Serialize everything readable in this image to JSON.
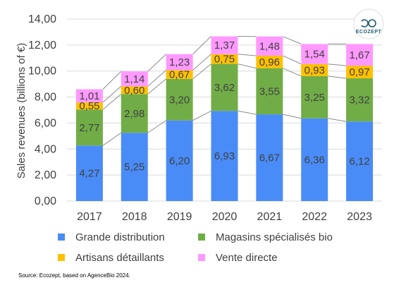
{
  "brand": {
    "logo_text": "ECOZEPT",
    "logo_color": "#1f5a6e"
  },
  "source": "Source: Ecozept, based on AgenceBio 2024.",
  "chart_data": {
    "type": "bar",
    "stacked": true,
    "categories": [
      "2017",
      "2018",
      "2019",
      "2020",
      "2021",
      "2022",
      "2023"
    ],
    "ylabel": "Sales revenues (billions of €)",
    "ylim": [
      0,
      14
    ],
    "yticks": [
      "0,00",
      "2,00",
      "4,00",
      "6,00",
      "8,00",
      "10,00",
      "12,00",
      "14,00"
    ],
    "grid": true,
    "legend_position": "bottom",
    "series": [
      {
        "name": "Grande distribution",
        "color": "#4a8cf7",
        "values": [
          4.27,
          5.25,
          6.2,
          6.93,
          6.67,
          6.36,
          6.12
        ],
        "labels": [
          "4,27",
          "5,25",
          "6,20",
          "6,93",
          "6,67",
          "6,36",
          "6,12"
        ]
      },
      {
        "name": "Magasins spécialisés bio",
        "color": "#71ad47",
        "values": [
          2.77,
          2.98,
          3.2,
          3.62,
          3.55,
          3.25,
          3.32
        ],
        "labels": [
          "2,77",
          "2,98",
          "3,20",
          "3,62",
          "3,55",
          "3,25",
          "3,32"
        ]
      },
      {
        "name": "Artisans détaillants",
        "color": "#ffc000",
        "values": [
          0.55,
          0.6,
          0.67,
          0.75,
          0.96,
          0.93,
          0.97
        ],
        "labels": [
          "0,55",
          "0,60",
          "0,67",
          "0,75",
          "0,96",
          "0,93",
          "0,97"
        ]
      },
      {
        "name": "Vente directe",
        "color": "#ff99ff",
        "values": [
          1.01,
          1.14,
          1.23,
          1.37,
          1.48,
          1.54,
          1.67
        ],
        "labels": [
          "1,01",
          "1,14",
          "1,23",
          "1,37",
          "1,48",
          "1,54",
          "1,67"
        ]
      }
    ]
  }
}
